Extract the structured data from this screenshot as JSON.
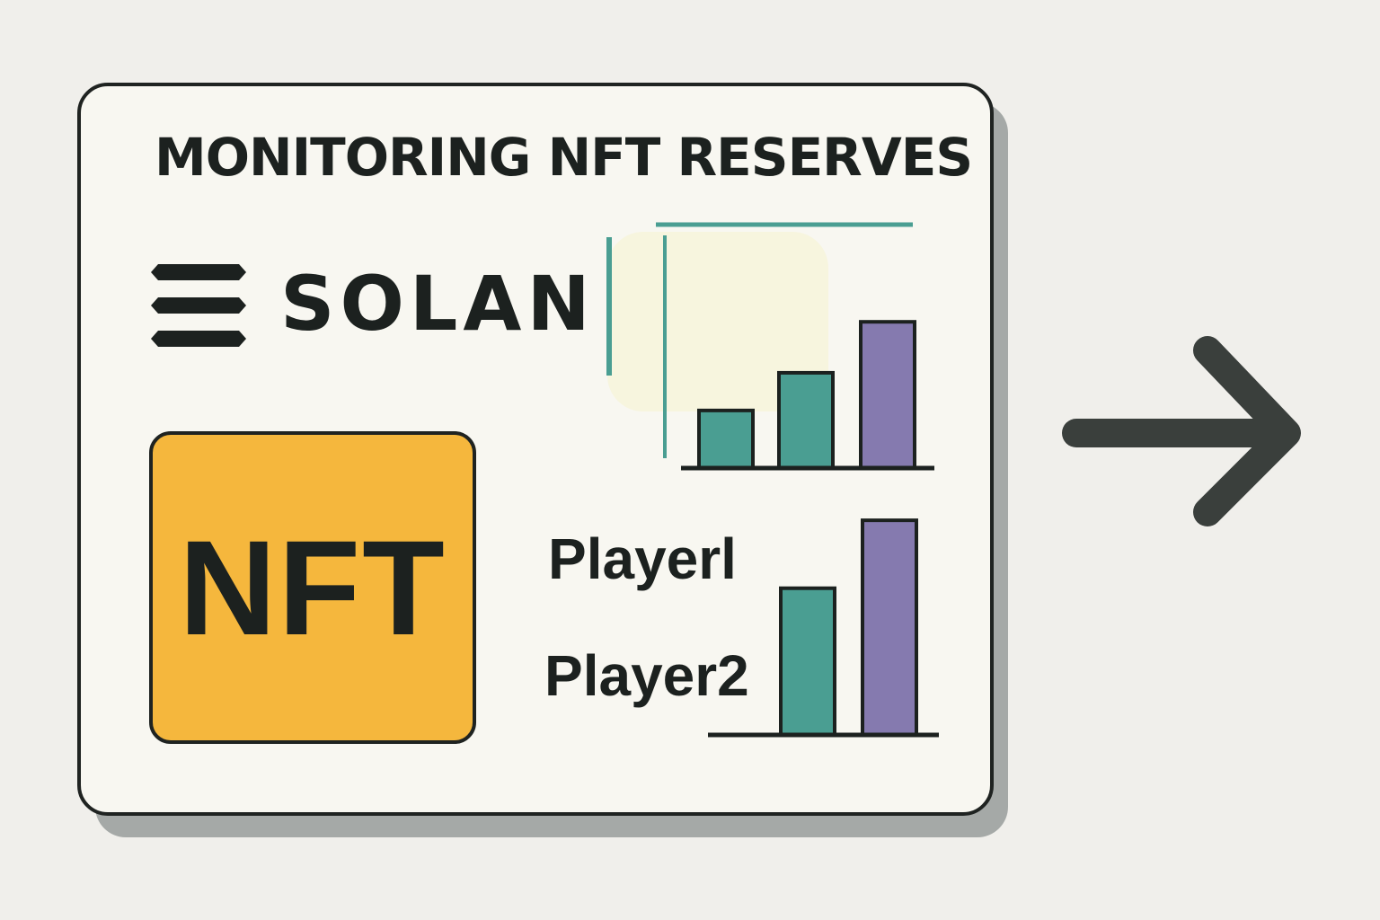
{
  "title": "MONITORING NFT RESERVES",
  "brand": {
    "name": "SOLAN",
    "icon": "solana-logo-icon"
  },
  "badge": {
    "label": "NFT",
    "color": "#f5b73d"
  },
  "players": {
    "player1": "Playerl",
    "player2": "Player2"
  },
  "colors": {
    "teal": "#4a9e92",
    "purple": "#857aaf",
    "ink": "#1c211f",
    "arrow": "#3a3f3c",
    "card": "#f8f7f1",
    "background": "#f0efeb"
  },
  "navigation": {
    "icon": "arrow-right-icon"
  },
  "chart_data": [
    {
      "type": "bar",
      "categories": [
        "",
        "",
        ""
      ],
      "values": [
        26,
        43,
        66
      ],
      "colors": [
        "#4a9e92",
        "#4a9e92",
        "#857aaf"
      ],
      "ylim": [
        0,
        90
      ],
      "grid": false
    },
    {
      "type": "bar",
      "categories": [
        "Playerl",
        "Player2"
      ],
      "values": [
        54,
        79
      ],
      "colors": [
        "#4a9e92",
        "#857aaf"
      ],
      "ylim": [
        0,
        84
      ],
      "grid": false
    }
  ]
}
